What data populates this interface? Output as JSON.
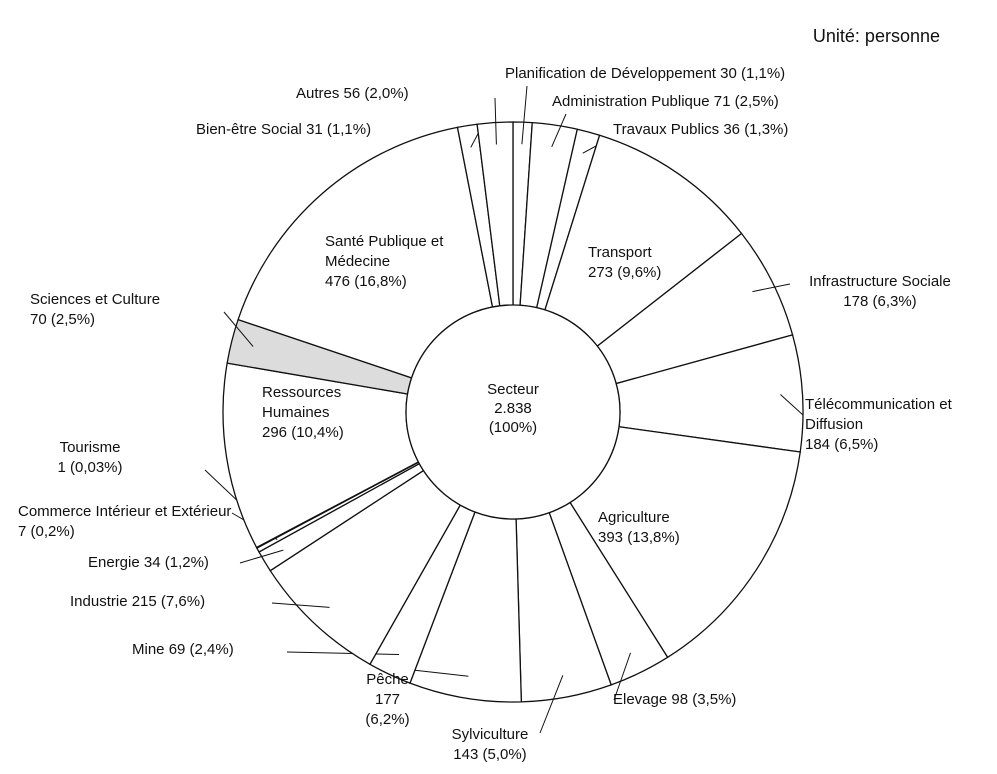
{
  "chart_data": {
    "type": "donut",
    "subtitle": "Unité: personne",
    "center": {
      "label": "Secteur",
      "total": {
        "value": 2838,
        "label": "2.838"
      },
      "percent": "(100%)"
    },
    "categories": [
      "Planification de Développement",
      "Administration Publique",
      "Travaux Publics",
      "Transport",
      "Infrastructure Sociale",
      "Télécommunication et Diffusion",
      "Agriculture",
      "Elevage",
      "Sylviculture",
      "Pêche",
      "Mine",
      "Industrie",
      "Energie",
      "Commerce Intérieur et Extérieur",
      "Tourisme",
      "Ressources Humaines",
      "Sciences et Culture",
      "Santé Publique et Médecine",
      "Bien-être Social",
      "Autres"
    ],
    "values": [
      30,
      71,
      36,
      273,
      178,
      184,
      393,
      98,
      143,
      177,
      69,
      215,
      34,
      7,
      1,
      296,
      70,
      476,
      31,
      56
    ],
    "percent_labels": [
      "(1,1%)",
      "(2,5%)",
      "(1,3%)",
      "(9,6%)",
      "(6,3%)",
      "(6,5%)",
      "(13,8%)",
      "(3,5%)",
      "(5,0%)",
      "(6,2%)",
      "(2,4%)",
      "(7,6%)",
      "(1,2%)",
      "(0,2%)",
      "(0,03%)",
      "(10,4%)",
      "(2,5%)",
      "(16,8%)",
      "(1,1%)",
      "(2,0%)"
    ],
    "colors": [
      "#ffffff",
      "#ffffff",
      "#ffffff",
      "#ffffff",
      "#ffffff",
      "#ffffff",
      "#ffffff",
      "#ffffff",
      "#ffffff",
      "#ffffff",
      "#ffffff",
      "#ffffff",
      "#ffffff",
      "#ffffff",
      "#ffffff",
      "#ffffff",
      "#dcdcdc",
      "#ffffff",
      "#ffffff",
      "#ffffff"
    ]
  }
}
